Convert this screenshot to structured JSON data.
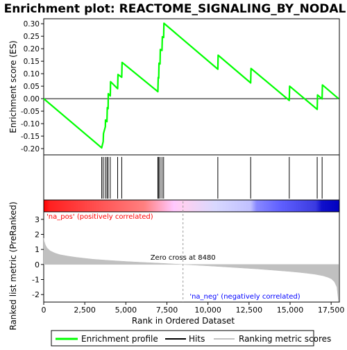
{
  "chart_data": {
    "type": "line",
    "title": "Enrichment plot: REACTOME_SIGNALING_BY_NODAL",
    "panels": {
      "enrichment": {
        "ylabel": "Enrichment score (ES)",
        "ylim": [
          -0.225,
          0.32
        ],
        "yticks": [
          -0.2,
          -0.15,
          -0.1,
          -0.05,
          0.0,
          0.05,
          0.1,
          0.15,
          0.2,
          0.25,
          0.3
        ],
        "ytick_labels": [
          "-0.20",
          "-0.15",
          "-0.10",
          "-0.05",
          "0.00",
          "0.05",
          "0.10",
          "0.15",
          "0.20",
          "0.25",
          "0.30"
        ],
        "series": [
          {
            "name": "Enrichment profile",
            "color": "#00ff00",
            "x": [
              0,
              3530,
              3620,
              3640,
              3750,
              3760,
              3850,
              3870,
              3920,
              3930,
              4050,
              4070,
              4500,
              4520,
              4750,
              4770,
              6950,
              6970,
              7000,
              7020,
              7080,
              7100,
              7200,
              7220,
              7300,
              7320,
              10600,
              10620,
              12600,
              12620,
              14950,
              14970,
              16650,
              16670,
              16950,
              16970,
              17950
            ],
            "y": [
              0.0,
              -0.197,
              -0.172,
              -0.14,
              -0.112,
              -0.085,
              -0.092,
              -0.036,
              -0.04,
              0.02,
              0.011,
              0.068,
              0.04,
              0.097,
              0.086,
              0.145,
              0.028,
              0.085,
              0.082,
              0.142,
              0.139,
              0.197,
              0.193,
              0.248,
              0.245,
              0.302,
              0.118,
              0.174,
              0.063,
              0.121,
              -0.007,
              0.05,
              -0.043,
              0.015,
              -0.001,
              0.055,
              0.0
            ]
          }
        ]
      },
      "hits": {
        "label": "Hits",
        "positions": [
          3530,
          3620,
          3750,
          3850,
          3920,
          4050,
          4500,
          4750,
          6950,
          7000,
          7080,
          7200,
          7300,
          10600,
          12600,
          14950,
          16650,
          16950
        ]
      },
      "ranking": {
        "ylabel": "Ranked list metric (PreRanked)",
        "xlabel": "Rank in Ordered Dataset",
        "xlim": [
          0,
          18000
        ],
        "ylim": [
          -2.5,
          3.5
        ],
        "xticks": [
          0,
          2500,
          5000,
          7500,
          10000,
          12500,
          15000,
          17500
        ],
        "xtick_labels": [
          "0",
          "2,500",
          "5,000",
          "7,500",
          "10,000",
          "12,500",
          "15,000",
          "17,500"
        ],
        "yticks": [
          -2,
          -1,
          0,
          1,
          2,
          3
        ],
        "ytick_labels": [
          "-2",
          "-1",
          "0",
          "1",
          "2",
          "3"
        ],
        "series": [
          {
            "name": "Ranking metric scores",
            "color": "#c0c0c0",
            "x": [
              0,
              30,
              100,
              200,
              400,
              700,
              1000,
              1500,
              2000,
              3000,
              4000,
              5000,
              6000,
              7000,
              8000,
              8480,
              9000,
              10000,
              11000,
              12000,
              13000,
              14000,
              15000,
              15500,
              16000,
              16500,
              17000,
              17300,
              17500,
              17700,
              17850,
              17950
            ],
            "y": [
              1.75,
              1.55,
              1.3,
              1.1,
              0.9,
              0.75,
              0.65,
              0.55,
              0.47,
              0.35,
              0.27,
              0.2,
              0.14,
              0.09,
              0.03,
              0.0,
              -0.03,
              -0.09,
              -0.16,
              -0.23,
              -0.3,
              -0.38,
              -0.47,
              -0.52,
              -0.58,
              -0.65,
              -0.75,
              -0.85,
              -0.95,
              -1.15,
              -1.5,
              -2.45
            ]
          }
        ],
        "annotations": {
          "zero_cross": "Zero cross at 8480",
          "zero_cross_x": 8480,
          "pos_label": "'na_pos' (positively correlated)",
          "neg_label": "'na_neg' (negatively correlated)"
        }
      }
    },
    "legend": {
      "placement": "bottom",
      "items": [
        "Enrichment profile",
        "Hits",
        "Ranking metric scores"
      ]
    },
    "colors": {
      "pos_text": "#ff0000",
      "neg_text": "#0000ff",
      "bar_stops": [
        "#ff0000",
        "#ff6a6a",
        "#ffc8ff",
        "#c8c8ff",
        "#5555ff",
        "#0000cc"
      ]
    }
  }
}
